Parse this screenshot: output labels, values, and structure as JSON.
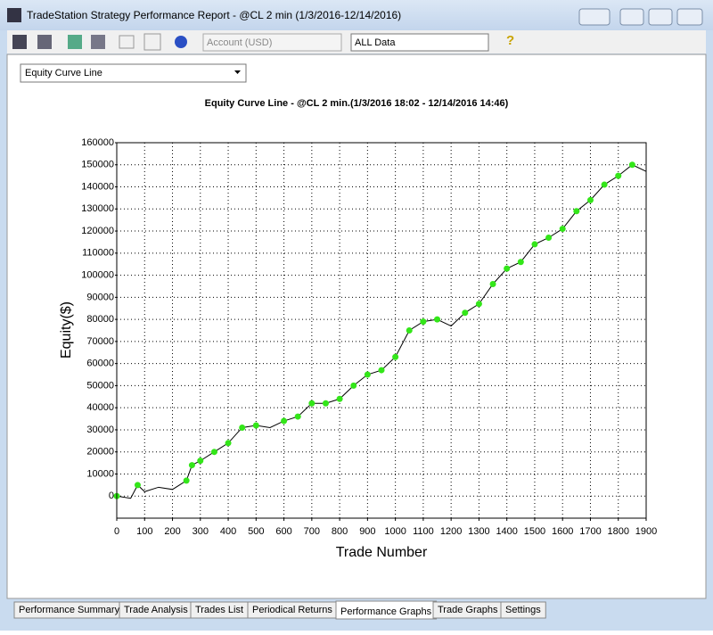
{
  "window": {
    "title": "TradeStation Strategy Performance Report - @CL 2 min (1/3/2016-12/14/2016)"
  },
  "toolbar": {
    "account": "Account (USD)",
    "data_range": "ALL Data"
  },
  "view_selector": "Equity Curve Line",
  "chart_data": {
    "type": "line",
    "title": "Equity Curve Line - @CL 2 min.(1/3/2016 18:02 - 12/14/2016 14:46)",
    "x_label": "Trade Number",
    "y_label": "Equity($)",
    "x": [
      0,
      50,
      75,
      100,
      150,
      200,
      250,
      270,
      300,
      350,
      400,
      450,
      500,
      550,
      600,
      650,
      700,
      750,
      800,
      850,
      900,
      950,
      1000,
      1050,
      1100,
      1150,
      1200,
      1250,
      1300,
      1350,
      1400,
      1450,
      1500,
      1550,
      1600,
      1650,
      1700,
      1750,
      1800,
      1850,
      1900
    ],
    "series": [
      {
        "color": "#000000",
        "values": [
          0,
          -1000,
          5000,
          2000,
          4000,
          3000,
          7000,
          14000,
          16000,
          20000,
          24000,
          31000,
          32000,
          31000,
          34000,
          36000,
          42000,
          42000,
          44000,
          50000,
          55000,
          57000,
          63000,
          75000,
          79000,
          80000,
          77000,
          83000,
          87000,
          96000,
          103000,
          106000,
          114000,
          117000,
          121000,
          129000,
          134000,
          141000,
          145000,
          150000,
          147000
        ]
      }
    ],
    "marker_color": "#33e619",
    "xlim": [
      0,
      1900
    ],
    "xticks": [
      0,
      100,
      200,
      300,
      400,
      500,
      600,
      700,
      800,
      900,
      1000,
      1100,
      1200,
      1300,
      1400,
      1500,
      1600,
      1700,
      1800,
      1900
    ],
    "ylim": [
      -10000,
      160000
    ],
    "yticks": [
      0,
      10000,
      20000,
      30000,
      40000,
      50000,
      60000,
      70000,
      80000,
      90000,
      100000,
      110000,
      120000,
      130000,
      140000,
      150000,
      160000
    ],
    "grid": true
  },
  "tabs": [
    "Performance Summary",
    "Trade Analysis",
    "Trades List",
    "Periodical Returns",
    "Performance Graphs",
    "Trade Graphs",
    "Settings"
  ]
}
